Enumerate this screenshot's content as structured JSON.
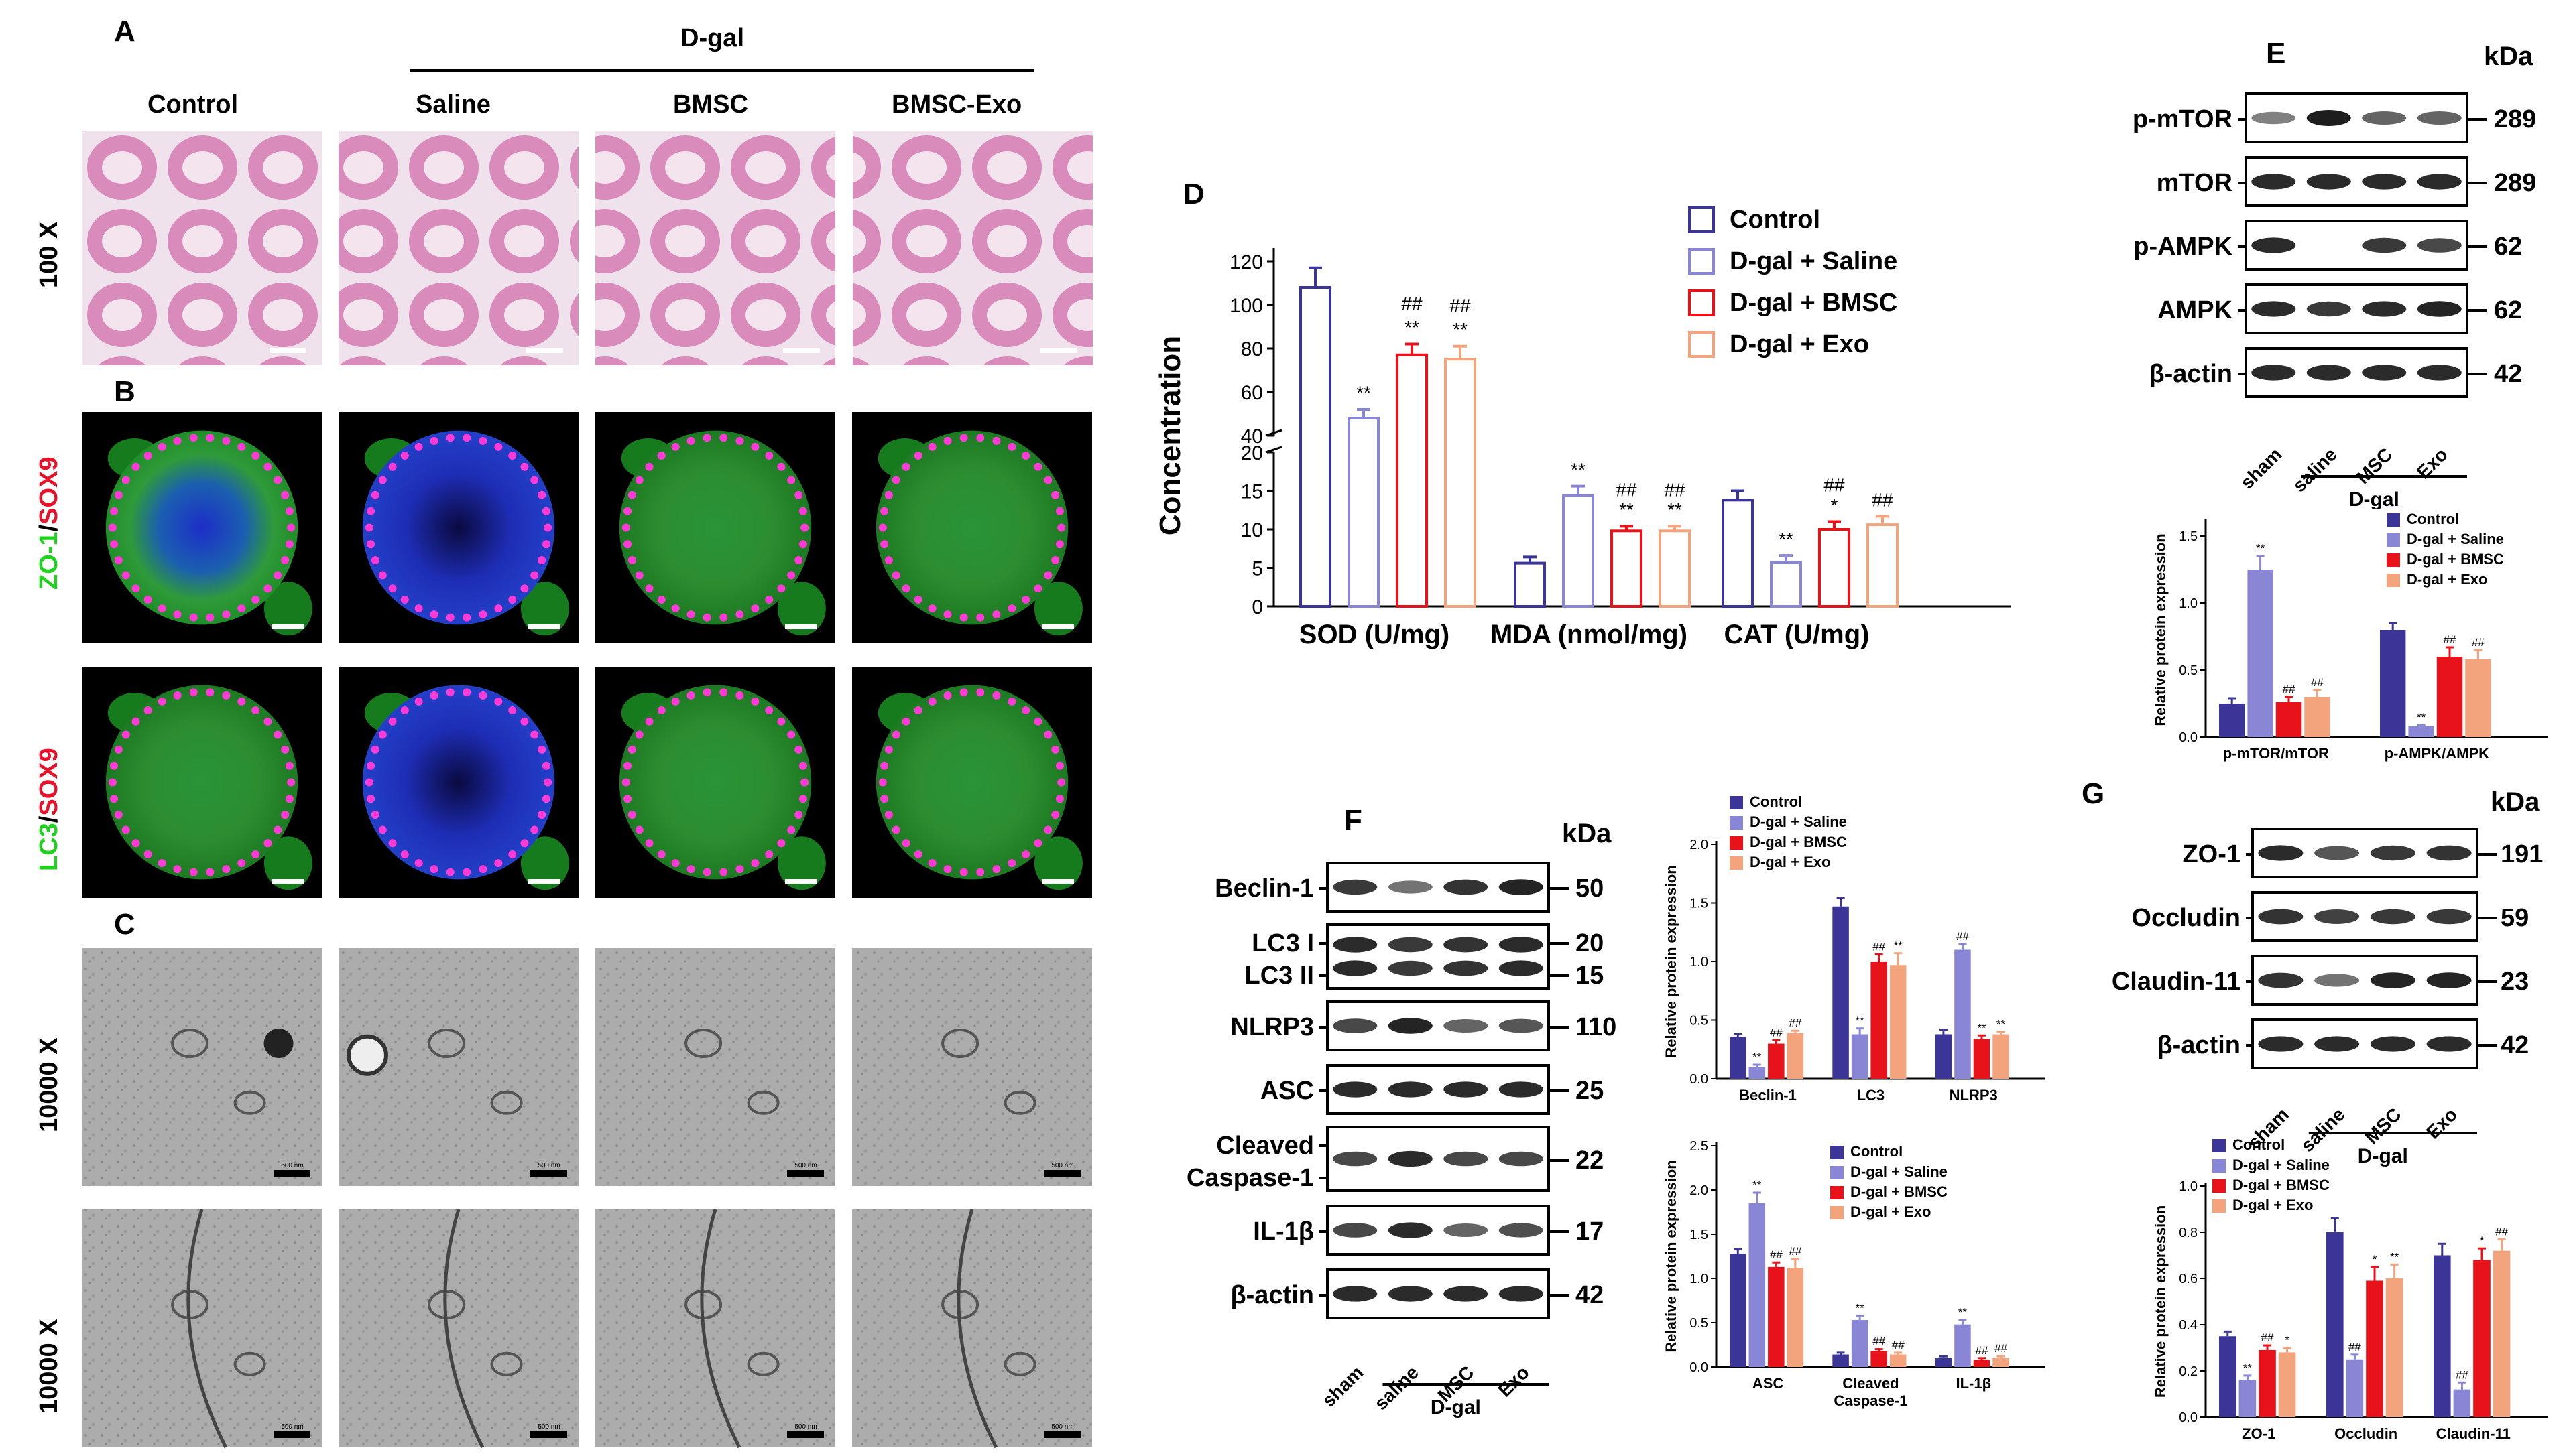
{
  "colors": {
    "control": "#3a3596",
    "saline": "#8a86d6",
    "bmsc": "#e8121b",
    "exo": "#f4a47c",
    "fluor_green": "#1ed21e",
    "fluor_red": "#e8122a",
    "he_pink": "#e3a8c9",
    "tem_gray": "#9a9a9a"
  },
  "panelA": {
    "letter": "A",
    "dgal": "D-gal",
    "columns": [
      "Control",
      "Saline",
      "BMSC",
      "BMSC-Exo"
    ],
    "row_label": "100 X"
  },
  "panelB": {
    "letter": "B",
    "row1_green": "ZO-1",
    "row1_sep": "/",
    "row1_red": "SOX9",
    "row2_green": "LC3",
    "row2_sep": "/",
    "row2_red": "SOX9"
  },
  "panelC": {
    "letter": "C",
    "row_labels": [
      "10000 X",
      "10000 X"
    ],
    "scalebar": "500 nm"
  },
  "panelD": {
    "letter": "D",
    "legend": [
      "Control",
      "D-gal + Saline",
      "D-gal + BMSC",
      "D-gal + Exo"
    ],
    "ylabel": "Concentration",
    "upper_ticks": [
      "120",
      "100",
      "80",
      "60",
      "40"
    ],
    "lower_ticks": [
      "20",
      "15",
      "10",
      "5",
      "0"
    ],
    "groups": [
      "SOD (U/mg)",
      "MDA (nmol/mg)",
      "CAT (U/mg)"
    ],
    "sig": {
      "sod_saline": "**",
      "sod_bmsc_top": "##",
      "sod_bmsc": "**",
      "sod_exo_top": "##",
      "sod_exo": "**",
      "mda_saline": "**",
      "mda_bmsc_top": "##",
      "mda_bmsc": "**",
      "mda_exo_top": "##",
      "mda_exo": "**",
      "cat_saline": "**",
      "cat_bmsc_top": "##",
      "cat_bmsc": "*",
      "cat_exo": "##"
    }
  },
  "panelE": {
    "letter": "E",
    "kda": "kDa",
    "proteins": [
      "p-mTOR",
      "mTOR",
      "p-AMPK",
      "AMPK",
      "β-actin"
    ],
    "weights": [
      "289",
      "289",
      "62",
      "62",
      "42"
    ],
    "lanes": [
      "sham",
      "saline",
      "MSC",
      "Exo"
    ],
    "dgal": "D-gal",
    "chart": {
      "legend": [
        "Control",
        "D-gal + Saline",
        "D-gal + BMSC",
        "D-gal + Exo"
      ],
      "ylabel": "Relative protein expression",
      "ticks": [
        "0.0",
        "0.5",
        "1.0",
        "1.5"
      ],
      "groups": [
        "p-mTOR/mTOR",
        "p-AMPK/AMPK"
      ],
      "sig": [
        "**",
        "##",
        "##",
        "**",
        "##",
        "##"
      ]
    }
  },
  "panelF": {
    "letter": "F",
    "kda": "kDa",
    "proteins": [
      "Beclin-1",
      "LC3 I",
      "LC3 II",
      "NLRP3",
      "ASC",
      "Cleaved",
      "Caspase-1",
      "IL-1β",
      "β-actin"
    ],
    "weights": [
      "50",
      "20",
      "15",
      "110",
      "25",
      "22",
      "17",
      "42"
    ],
    "lanes": [
      "sham",
      "saline",
      "MSC",
      "Exo"
    ],
    "dgal": "D-gal",
    "chart1": {
      "legend": [
        "Control",
        "D-gal + Saline",
        "D-gal + BMSC",
        "D-gal + Exo"
      ],
      "ylabel": "Relative protein expression",
      "ticks": [
        "0.0",
        "0.5",
        "1.0",
        "1.5",
        "2.0"
      ],
      "groups": [
        "Beclin-1",
        "LC3",
        "NLRP3"
      ],
      "sig": [
        "**",
        "##",
        "##",
        "**",
        "##",
        "**",
        "##",
        "**",
        "**",
        "##",
        "##"
      ]
    },
    "chart2": {
      "legend": [
        "Control",
        "D-gal + Saline",
        "D-gal + BMSC",
        "D-gal + Exo"
      ],
      "ylabel": "Relative protein expression",
      "ticks": [
        "0.0",
        "0.5",
        "1.0",
        "1.5",
        "2.0",
        "2.5"
      ],
      "groups": [
        "ASC",
        "Cleaved",
        "Caspase-1",
        "IL-1β"
      ],
      "sig": [
        "**",
        "##",
        "##",
        "**",
        "##",
        "##",
        "**",
        "##",
        "##"
      ]
    }
  },
  "panelG": {
    "letter": "G",
    "kda": "kDa",
    "proteins": [
      "ZO-1",
      "Occludin",
      "Claudin-11",
      "β-actin"
    ],
    "weights": [
      "191",
      "59",
      "23",
      "42"
    ],
    "lanes": [
      "sham",
      "saline",
      "MSC",
      "Exo"
    ],
    "dgal": "D-gal",
    "chart": {
      "legend": [
        "Control",
        "D-gal + Saline",
        "D-gal + BMSC",
        "D-gal + Exo"
      ],
      "ylabel": "Relative protein expression",
      "ticks": [
        "0.0",
        "0.2",
        "0.4",
        "0.6",
        "0.8",
        "1.0"
      ],
      "groups": [
        "ZO-1",
        "Occludin",
        "Claudin-11"
      ],
      "sig": [
        "**",
        "##",
        "*",
        "##",
        "*",
        "**",
        "##",
        "*",
        "##",
        "*",
        "**",
        "##",
        "##"
      ]
    }
  },
  "chart_data": [
    {
      "type": "bar",
      "panel": "D",
      "categories": [
        "SOD (U/mg)",
        "MDA (nmol/mg)",
        "CAT (U/mg)"
      ],
      "series": [
        {
          "name": "Control",
          "values": [
            108,
            5.6,
            13.8
          ]
        },
        {
          "name": "D-gal + Saline",
          "values": [
            48,
            14.4,
            5.7
          ]
        },
        {
          "name": "D-gal + BMSC",
          "values": [
            77,
            9.8,
            10
          ]
        },
        {
          "name": "D-gal + Exo",
          "values": [
            75,
            9.8,
            10.6
          ]
        }
      ],
      "errors": [
        [
          9,
          0.8,
          1.2
        ],
        [
          4,
          1.2,
          0.9
        ],
        [
          5,
          0.6,
          1.0
        ],
        [
          6,
          0.6,
          1.1
        ]
      ]
    },
    {
      "type": "bar",
      "panel": "E",
      "categories": [
        "p-mTOR/mTOR",
        "p-AMPK/AMPK"
      ],
      "ylim": [
        0,
        1.6
      ],
      "series": [
        {
          "name": "Control",
          "values": [
            0.25,
            0.8
          ]
        },
        {
          "name": "D-gal + Saline",
          "values": [
            1.25,
            0.08
          ]
        },
        {
          "name": "D-gal + BMSC",
          "values": [
            0.26,
            0.6
          ]
        },
        {
          "name": "D-gal + Exo",
          "values": [
            0.3,
            0.58
          ]
        }
      ],
      "errors": [
        [
          0.04,
          0.05
        ],
        [
          0.1,
          0.01
        ],
        [
          0.04,
          0.07
        ],
        [
          0.05,
          0.07
        ]
      ]
    },
    {
      "type": "bar",
      "panel": "F-1",
      "categories": [
        "Beclin-1",
        "LC3",
        "NLRP3"
      ],
      "ylim": [
        0,
        2.0
      ],
      "series": [
        {
          "name": "Control",
          "values": [
            0.36,
            1.47,
            0.38
          ]
        },
        {
          "name": "D-gal + Saline",
          "values": [
            0.1,
            0.38,
            1.1
          ]
        },
        {
          "name": "D-gal + BMSC",
          "values": [
            0.3,
            1.0,
            0.34
          ]
        },
        {
          "name": "D-gal + Exo",
          "values": [
            0.39,
            0.97,
            0.38
          ]
        }
      ],
      "errors": [
        [
          0.02,
          0.07,
          0.04
        ],
        [
          0.02,
          0.05,
          0.05
        ],
        [
          0.03,
          0.06,
          0.03
        ],
        [
          0.02,
          0.1,
          0.02
        ]
      ]
    },
    {
      "type": "bar",
      "panel": "F-2",
      "categories": [
        "ASC",
        "Cleaved Caspase-1",
        "IL-1β"
      ],
      "ylim": [
        0,
        2.5
      ],
      "series": [
        {
          "name": "Control",
          "values": [
            1.28,
            0.14,
            0.1
          ]
        },
        {
          "name": "D-gal + Saline",
          "values": [
            1.85,
            0.53,
            0.48
          ]
        },
        {
          "name": "D-gal + BMSC",
          "values": [
            1.13,
            0.18,
            0.08
          ]
        },
        {
          "name": "D-gal + Exo",
          "values": [
            1.12,
            0.14,
            0.1
          ]
        }
      ],
      "errors": [
        [
          0.05,
          0.02,
          0.02
        ],
        [
          0.12,
          0.05,
          0.05
        ],
        [
          0.05,
          0.02,
          0.02
        ],
        [
          0.1,
          0.02,
          0.02
        ]
      ]
    },
    {
      "type": "bar",
      "panel": "G",
      "categories": [
        "ZO-1",
        "Occludin",
        "Claudin-11"
      ],
      "ylim": [
        0,
        1.0
      ],
      "series": [
        {
          "name": "Control",
          "values": [
            0.35,
            0.8,
            0.7
          ]
        },
        {
          "name": "D-gal + Saline",
          "values": [
            0.16,
            0.25,
            0.12
          ]
        },
        {
          "name": "D-gal + BMSC",
          "values": [
            0.29,
            0.59,
            0.68
          ]
        },
        {
          "name": "D-gal + Exo",
          "values": [
            0.28,
            0.6,
            0.72
          ]
        }
      ],
      "errors": [
        [
          0.02,
          0.06,
          0.05
        ],
        [
          0.02,
          0.02,
          0.03
        ],
        [
          0.02,
          0.06,
          0.05
        ],
        [
          0.02,
          0.06,
          0.05
        ]
      ]
    }
  ]
}
